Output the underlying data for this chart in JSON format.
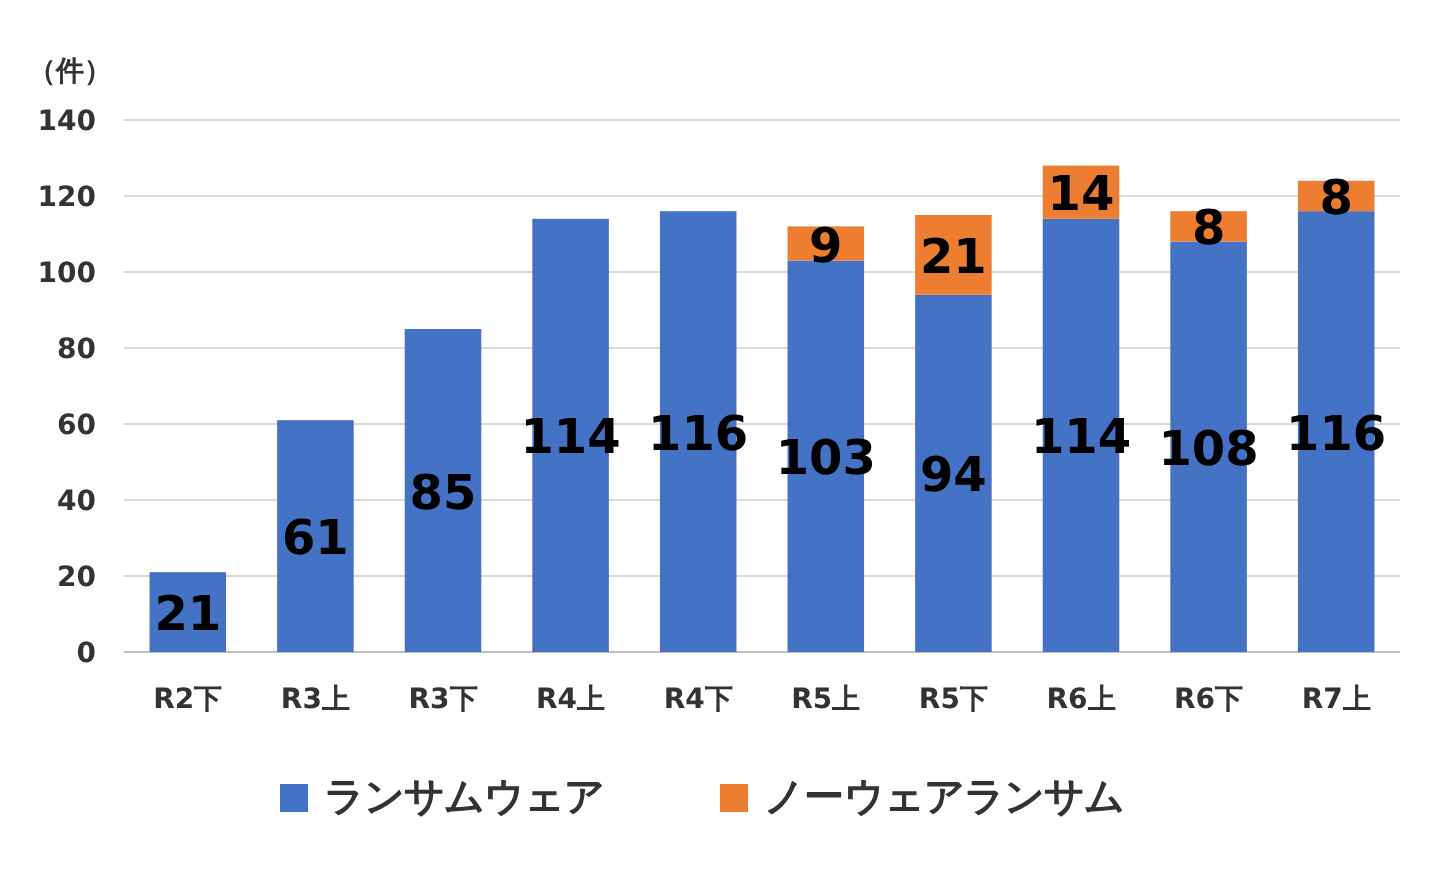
{
  "chart_data": {
    "type": "bar",
    "ylabel": "（件）",
    "stacked": true,
    "categories": [
      "R2下",
      "R3上",
      "R3下",
      "R4上",
      "R4下",
      "R5上",
      "R5下",
      "R6上",
      "R6下",
      "R7上"
    ],
    "series": [
      {
        "name": "ランサムウェア",
        "color": "#4472c4",
        "values": [
          21,
          61,
          85,
          114,
          116,
          103,
          94,
          114,
          108,
          116
        ]
      },
      {
        "name": "ノーウェアランサム",
        "color": "#ed7d31",
        "values": [
          null,
          null,
          null,
          null,
          null,
          9,
          21,
          14,
          8,
          8
        ]
      }
    ],
    "ylim": [
      0,
      140
    ],
    "yticks": [
      0,
      20,
      40,
      60,
      80,
      100,
      120,
      140
    ],
    "grid": "y",
    "legend": "bottom",
    "data_labels": true
  }
}
